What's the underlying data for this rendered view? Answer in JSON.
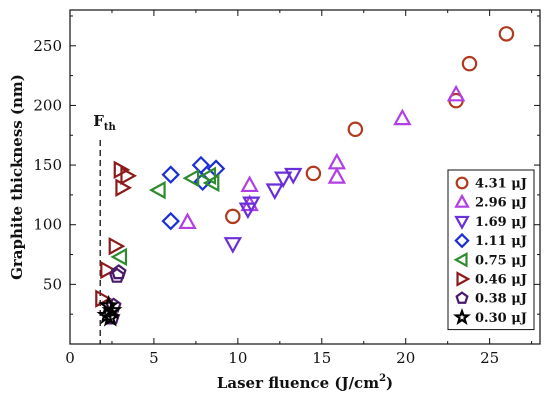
{
  "chart_data": {
    "type": "scatter",
    "xlabel": "Laser fluence (J/cm",
    "xlabel_sup": "2",
    "xlabel_end": ")",
    "ylabel": "Graphite thickness (nm)",
    "xlim": [
      0,
      28
    ],
    "ylim": [
      0,
      280
    ],
    "xticks": [
      0,
      5,
      10,
      15,
      20,
      25
    ],
    "yticks": [
      50,
      100,
      150,
      200,
      250
    ],
    "grid": false,
    "legend_position": "bottom-right",
    "annotation": {
      "text": "F",
      "sub": "th",
      "x": 1.8
    },
    "series": [
      {
        "name": "4.31 μJ",
        "marker": "circle",
        "color": "#b03a1e",
        "points": [
          [
            26.0,
            260
          ],
          [
            23.8,
            235
          ],
          [
            23.0,
            204
          ],
          [
            17.0,
            180
          ],
          [
            14.5,
            143
          ],
          [
            9.7,
            107
          ]
        ]
      },
      {
        "name": "2.96 μJ",
        "marker": "triangle-up",
        "color": "#b23ee6",
        "points": [
          [
            23.0,
            209
          ],
          [
            19.8,
            189
          ],
          [
            15.9,
            152
          ],
          [
            15.9,
            140
          ],
          [
            10.7,
            133
          ],
          [
            10.7,
            117
          ],
          [
            7.0,
            102
          ]
        ]
      },
      {
        "name": "1.69 μJ",
        "marker": "triangle-down",
        "color": "#6b2fd9",
        "points": [
          [
            13.3,
            142
          ],
          [
            12.7,
            139
          ],
          [
            12.2,
            129
          ],
          [
            10.8,
            118
          ],
          [
            10.6,
            113
          ],
          [
            9.7,
            84
          ]
        ]
      },
      {
        "name": "1.11 μJ",
        "marker": "diamond",
        "color": "#1a2fd6",
        "points": [
          [
            7.8,
            150
          ],
          [
            8.7,
            147
          ],
          [
            6.0,
            142
          ],
          [
            7.9,
            136
          ],
          [
            6.0,
            103
          ]
        ]
      },
      {
        "name": "0.75 μJ",
        "marker": "triangle-left",
        "color": "#2e8b2e",
        "points": [
          [
            7.3,
            139
          ],
          [
            8.3,
            141
          ],
          [
            8.5,
            135
          ],
          [
            5.3,
            129
          ],
          [
            3.0,
            73
          ]
        ]
      },
      {
        "name": "0.46 μJ",
        "marker": "triangle-right",
        "color": "#8b1a1a",
        "points": [
          [
            3.0,
            146
          ],
          [
            3.4,
            141
          ],
          [
            3.1,
            131
          ],
          [
            2.7,
            82
          ],
          [
            2.2,
            62
          ],
          [
            1.9,
            38
          ]
        ]
      },
      {
        "name": "0.38 μJ",
        "marker": "pentagon",
        "color": "#4a1a6b",
        "points": [
          [
            2.8,
            57
          ],
          [
            2.9,
            60
          ],
          [
            2.6,
            32
          ],
          [
            2.5,
            22
          ]
        ]
      },
      {
        "name": "0.30 μJ",
        "marker": "star",
        "color": "#000000",
        "points": [
          [
            2.3,
            32
          ],
          [
            2.5,
            28
          ],
          [
            2.2,
            24
          ],
          [
            2.4,
            22
          ]
        ]
      }
    ]
  }
}
